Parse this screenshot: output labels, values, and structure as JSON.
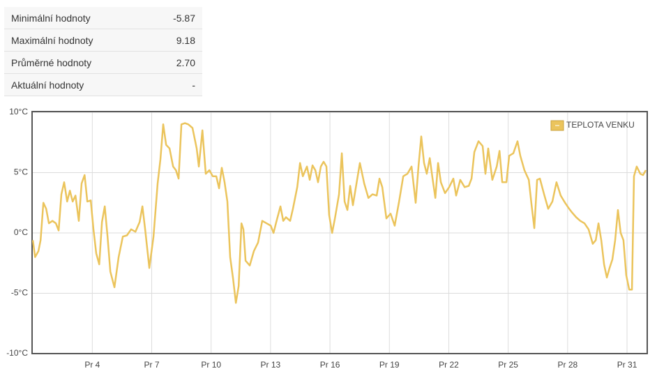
{
  "table": {
    "rows": [
      [
        "Minimální hodnoty",
        "-5.87"
      ],
      [
        "Maximální hodnoty",
        "9.18"
      ],
      [
        "Průměrné hodnoty",
        "2.70"
      ],
      [
        "Aktuální hodnoty",
        "-"
      ]
    ]
  },
  "chart_data": {
    "type": "line",
    "x": [
      1.0,
      1.11,
      1.28,
      1.39,
      1.53,
      1.67,
      1.81,
      1.99,
      2.16,
      2.3,
      2.44,
      2.58,
      2.73,
      2.87,
      3.01,
      3.15,
      3.32,
      3.46,
      3.61,
      3.75,
      3.92,
      4.06,
      4.2,
      4.35,
      4.49,
      4.63,
      4.77,
      4.91,
      5.12,
      5.33,
      5.54,
      5.75,
      5.96,
      6.18,
      6.39,
      6.53,
      6.67,
      6.88,
      7.09,
      7.3,
      7.44,
      7.58,
      7.73,
      7.9,
      8.08,
      8.22,
      8.36,
      8.5,
      8.68,
      8.85,
      9.06,
      9.27,
      9.38,
      9.56,
      9.73,
      9.91,
      10.08,
      10.26,
      10.4,
      10.54,
      10.68,
      10.82,
      10.96,
      11.11,
      11.25,
      11.39,
      11.53,
      11.63,
      11.74,
      11.95,
      12.16,
      12.37,
      12.58,
      12.8,
      13.01,
      13.15,
      13.29,
      13.5,
      13.64,
      13.78,
      13.99,
      14.13,
      14.35,
      14.49,
      14.63,
      14.84,
      14.98,
      15.12,
      15.26,
      15.4,
      15.54,
      15.68,
      15.82,
      15.96,
      16.11,
      16.25,
      16.46,
      16.6,
      16.74,
      16.88,
      17.02,
      17.16,
      17.3,
      17.51,
      17.73,
      17.94,
      18.15,
      18.36,
      18.5,
      18.64,
      18.85,
      19.06,
      19.27,
      19.49,
      19.7,
      19.91,
      20.12,
      20.33,
      20.47,
      20.61,
      20.75,
      20.89,
      21.04,
      21.18,
      21.32,
      21.46,
      21.6,
      21.81,
      22.02,
      22.23,
      22.37,
      22.58,
      22.8,
      23.01,
      23.15,
      23.29,
      23.5,
      23.71,
      23.85,
      23.99,
      24.2,
      24.42,
      24.56,
      24.7,
      24.91,
      25.05,
      25.26,
      25.47,
      25.61,
      25.82,
      26.04,
      26.18,
      26.32,
      26.46,
      26.6,
      26.81,
      27.02,
      27.23,
      27.44,
      27.65,
      27.87,
      28.08,
      28.22,
      28.43,
      28.64,
      28.85,
      29.06,
      29.27,
      29.42,
      29.56,
      29.7,
      29.84,
      29.98,
      30.12,
      30.26,
      30.4,
      30.54,
      30.68,
      30.82,
      30.96,
      31.11,
      31.25,
      31.35,
      31.49,
      31.67,
      31.81,
      31.95
    ],
    "series": [
      {
        "name": "TEPLOTA VENKU",
        "color": "#ebc45c",
        "values": [
          -0.6,
          -2.0,
          -1.5,
          -0.6,
          2.5,
          2.0,
          0.8,
          1.0,
          0.8,
          0.2,
          3.2,
          4.2,
          2.6,
          3.5,
          2.6,
          3.1,
          1.0,
          4.1,
          4.8,
          2.6,
          2.7,
          0.3,
          -1.7,
          -2.6,
          0.9,
          2.2,
          -0.3,
          -3.2,
          -4.5,
          -2.0,
          -0.3,
          -0.2,
          0.3,
          0.1,
          0.9,
          2.2,
          0.3,
          -2.9,
          -0.3,
          4.1,
          6.1,
          9.0,
          7.3,
          7.0,
          5.5,
          5.2,
          4.5,
          9.0,
          9.1,
          9.0,
          8.7,
          7.0,
          5.5,
          8.5,
          4.9,
          5.2,
          4.7,
          4.7,
          3.7,
          5.4,
          4.2,
          2.6,
          -2.0,
          -3.8,
          -5.8,
          -4.4,
          0.8,
          0.3,
          -2.3,
          -2.7,
          -1.5,
          -0.8,
          1.0,
          0.8,
          0.6,
          0.0,
          0.9,
          2.2,
          1.0,
          1.3,
          1.0,
          2.0,
          3.8,
          5.8,
          4.7,
          5.5,
          4.4,
          5.6,
          5.2,
          4.2,
          5.5,
          5.9,
          5.5,
          1.5,
          0.0,
          1.2,
          3.2,
          6.6,
          2.6,
          1.9,
          3.9,
          2.3,
          3.7,
          5.8,
          4.1,
          2.9,
          3.2,
          3.1,
          4.5,
          3.8,
          1.2,
          1.6,
          0.6,
          2.6,
          4.7,
          4.9,
          5.5,
          2.5,
          5.5,
          8.0,
          5.8,
          4.9,
          6.2,
          4.5,
          2.9,
          5.8,
          4.2,
          3.3,
          3.8,
          4.5,
          3.1,
          4.4,
          3.8,
          3.9,
          4.5,
          6.7,
          7.6,
          7.2,
          4.9,
          7.0,
          4.4,
          5.5,
          6.8,
          4.2,
          4.2,
          6.4,
          6.6,
          7.6,
          6.4,
          5.2,
          4.4,
          2.3,
          0.4,
          4.4,
          4.5,
          3.2,
          2.0,
          2.6,
          4.2,
          3.1,
          2.5,
          2.0,
          1.7,
          1.3,
          1.0,
          0.8,
          0.3,
          -0.9,
          -0.6,
          0.8,
          -0.6,
          -2.6,
          -3.7,
          -2.9,
          -2.2,
          -0.6,
          1.9,
          0.0,
          -0.6,
          -3.5,
          -4.7,
          -4.7,
          4.7,
          5.5,
          4.9,
          4.8,
          5.2
        ]
      }
    ],
    "xlim": [
      0.96,
      32.02
    ],
    "xticks": [
      {
        "value": 4,
        "label": "Pr 4"
      },
      {
        "value": 7,
        "label": "Pr 7"
      },
      {
        "value": 10,
        "label": "Pr 10"
      },
      {
        "value": 13,
        "label": "Pr 13"
      },
      {
        "value": 16,
        "label": "Pr 16"
      },
      {
        "value": 19,
        "label": "Pr 19"
      },
      {
        "value": 22,
        "label": "Pr 22"
      },
      {
        "value": 25,
        "label": "Pr 25"
      },
      {
        "value": 28,
        "label": "Pr 28"
      },
      {
        "value": 31,
        "label": "Pr 31"
      }
    ],
    "ylim": [
      -10,
      10
    ],
    "yticks": [
      {
        "value": -10,
        "label": "-10°C"
      },
      {
        "value": -5,
        "label": "-5°C"
      },
      {
        "value": 0,
        "label": "0°C"
      },
      {
        "value": 5,
        "label": "5°C"
      },
      {
        "value": 10,
        "label": "10°C"
      }
    ],
    "grid": true,
    "legend": "top-right"
  }
}
